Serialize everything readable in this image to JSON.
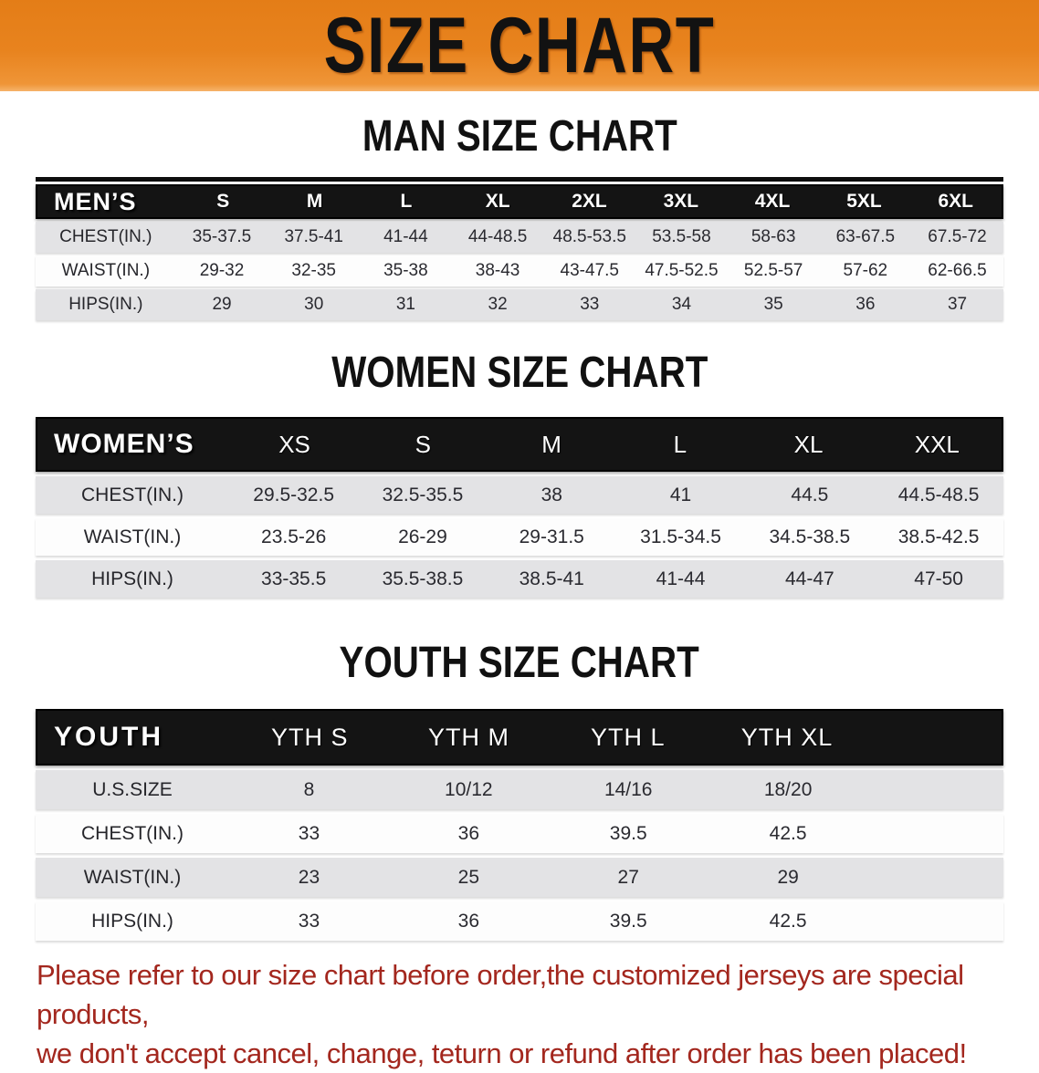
{
  "banner": {
    "title": "SIZE CHART",
    "background": "#E8831E"
  },
  "sections": [
    {
      "title": "MAN SIZE CHART",
      "group_label": "MEN’S",
      "columns": [
        "S",
        "M",
        "L",
        "XL",
        "2XL",
        "3XL",
        "4XL",
        "5XL",
        "6XL"
      ],
      "rows": [
        {
          "label": "CHEST(IN.)",
          "values": [
            "35-37.5",
            "37.5-41",
            "41-44",
            "44-48.5",
            "48.5-53.5",
            "53.5-58",
            "58-63",
            "63-67.5",
            "67.5-72"
          ]
        },
        {
          "label": "WAIST(IN.)",
          "values": [
            "29-32",
            "32-35",
            "35-38",
            "38-43",
            "43-47.5",
            "47.5-52.5",
            "52.5-57",
            "57-62",
            "62-66.5"
          ]
        },
        {
          "label": "HIPS(IN.)",
          "values": [
            "29",
            "30",
            "31",
            "32",
            "33",
            "34",
            "35",
            "36",
            "37"
          ]
        }
      ]
    },
    {
      "title": "WOMEN SIZE CHART",
      "group_label": "WOMEN’S",
      "columns": [
        "XS",
        "S",
        "M",
        "L",
        "XL",
        "XXL"
      ],
      "rows": [
        {
          "label": "CHEST(IN.)",
          "values": [
            "29.5-32.5",
            "32.5-35.5",
            "38",
            "41",
            "44.5",
            "44.5-48.5"
          ]
        },
        {
          "label": "WAIST(IN.)",
          "values": [
            "23.5-26",
            "26-29",
            "29-31.5",
            "31.5-34.5",
            "34.5-38.5",
            "38.5-42.5"
          ]
        },
        {
          "label": "HIPS(IN.)",
          "values": [
            "33-35.5",
            "35.5-38.5",
            "38.5-41",
            "41-44",
            "44-47",
            "47-50"
          ]
        }
      ]
    },
    {
      "title": "YOUTH SIZE CHART",
      "group_label": "YOUTH",
      "columns": [
        "YTH S",
        "YTH M",
        "YTH L",
        "YTH XL"
      ],
      "rows": [
        {
          "label": "U.S.SIZE",
          "values": [
            "8",
            "10/12",
            "14/16",
            "18/20"
          ]
        },
        {
          "label": "CHEST(IN.)",
          "values": [
            "33",
            "36",
            "39.5",
            "42.5"
          ]
        },
        {
          "label": "WAIST(IN.)",
          "values": [
            "23",
            "25",
            "27",
            "29"
          ]
        },
        {
          "label": "HIPS(IN.)",
          "values": [
            "33",
            "36",
            "39.5",
            "42.5"
          ]
        }
      ]
    }
  ],
  "footer": {
    "line1": "Please refer to our size chart before order,the customized jerseys are special products,",
    "line2": "we don't accept cancel, change, teturn or refund after order has been placed!",
    "color": "#A3271E"
  },
  "colors": {
    "banner_background": "#E8831E",
    "table_header_background": "#141414",
    "row_band_gray": "#E3E3E5",
    "footer_text_red": "#A3271E"
  }
}
